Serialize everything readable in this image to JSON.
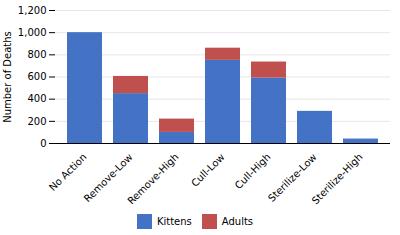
{
  "chart_data": {
    "type": "bar",
    "stacked": true,
    "categories": [
      "No Action",
      "Remove-Low",
      "Remove-High",
      "Cull-Low",
      "Cull-High",
      "Sterilize-Low",
      "Sterilize-High"
    ],
    "series": [
      {
        "name": "Kittens",
        "color": "#4472C4",
        "values": [
          1000,
          450,
          100,
          750,
          590,
          290,
          40
        ]
      },
      {
        "name": "Adults",
        "color": "#C0504D",
        "values": [
          0,
          155,
          120,
          110,
          145,
          0,
          0
        ]
      }
    ],
    "ylabel": "Number of Deaths",
    "ylim": [
      0,
      1200
    ],
    "yticks": [
      0,
      200,
      400,
      600,
      800,
      1000,
      1200
    ],
    "grid": true,
    "legend": "bottom"
  }
}
